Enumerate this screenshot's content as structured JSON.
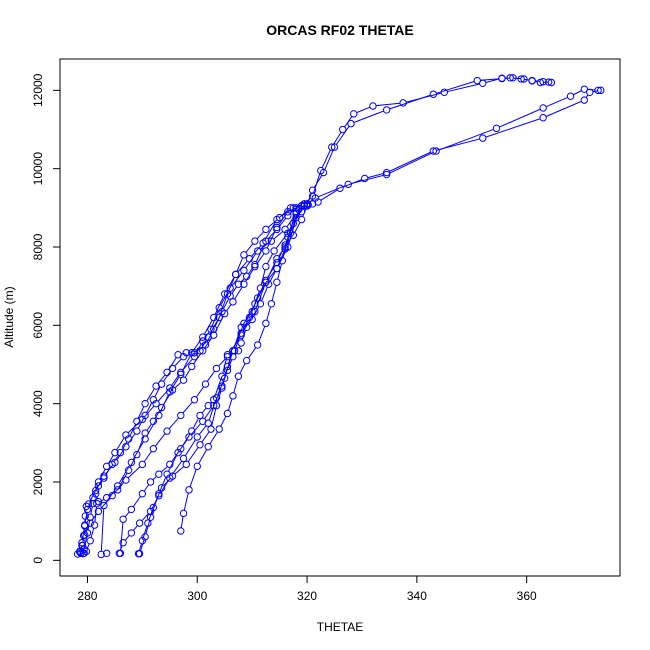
{
  "chart_data": {
    "type": "line",
    "title": "ORCAS RF02 THETAE",
    "xlabel": "THETAE",
    "ylabel": "Altitude (m)",
    "xlim": [
      275,
      377
    ],
    "ylim": [
      -400,
      12800
    ],
    "x_ticks": [
      280,
      300,
      320,
      340,
      360
    ],
    "y_ticks": [
      0,
      2000,
      4000,
      6000,
      8000,
      10000,
      12000
    ],
    "grid": false,
    "legend": "none",
    "marker": "open-circle",
    "color": "#0000ff",
    "series": [
      {
        "points": [
          [
            278.2,
            160
          ],
          [
            278.6,
            230
          ],
          [
            279.1,
            380
          ],
          [
            279.3,
            630
          ],
          [
            279.5,
            880
          ],
          [
            279.6,
            1130
          ],
          [
            279.8,
            1380
          ],
          [
            280.2,
            1440
          ],
          [
            281.5,
            1780
          ],
          [
            283.0,
            2150
          ],
          [
            285.0,
            2500
          ],
          [
            287.0,
            2900
          ],
          [
            289.0,
            3300
          ],
          [
            290.5,
            3700
          ],
          [
            292.0,
            4100
          ],
          [
            293.5,
            4500
          ],
          [
            295.5,
            4900
          ],
          [
            297.5,
            5200
          ],
          [
            299.5,
            5300
          ],
          [
            301.5,
            5500
          ],
          [
            303.0,
            5900
          ],
          [
            304.5,
            6350
          ],
          [
            306.0,
            6750
          ],
          [
            307.5,
            7050
          ],
          [
            309.0,
            7250
          ],
          [
            310.5,
            7550
          ],
          [
            312.5,
            8150
          ],
          [
            314.5,
            8450
          ],
          [
            316.5,
            8800
          ],
          [
            318.0,
            9000
          ],
          [
            319.0,
            9050
          ],
          [
            320.2,
            9080
          ],
          [
            321.0,
            9100
          ],
          [
            322.0,
            9150
          ],
          [
            326.0,
            9500
          ],
          [
            330.5,
            9750
          ],
          [
            334.5,
            9900
          ],
          [
            343.0,
            10450
          ],
          [
            352.0,
            10780
          ],
          [
            363.0,
            11300
          ],
          [
            370.5,
            11750
          ],
          [
            371.5,
            11950
          ],
          [
            373.5,
            12000
          ]
        ]
      },
      {
        "points": [
          [
            373.0,
            12000
          ],
          [
            370.5,
            12030
          ],
          [
            368.0,
            11850
          ],
          [
            363.0,
            11550
          ],
          [
            354.5,
            11030
          ],
          [
            343.5,
            10450
          ],
          [
            334.5,
            9850
          ],
          [
            327.5,
            9600
          ],
          [
            321.5,
            9250
          ],
          [
            320.0,
            9100
          ],
          [
            318.5,
            8950
          ],
          [
            316.5,
            8000
          ],
          [
            314.5,
            7450
          ],
          [
            312.5,
            7100
          ],
          [
            310.5,
            6350
          ],
          [
            308.0,
            5750
          ],
          [
            305.5,
            5200
          ],
          [
            303.5,
            4900
          ],
          [
            301.5,
            4500
          ],
          [
            299.5,
            4100
          ],
          [
            297.0,
            3700
          ],
          [
            294.5,
            3300
          ],
          [
            292.0,
            2850
          ],
          [
            290.0,
            2450
          ],
          [
            287.0,
            2050
          ],
          [
            284.5,
            1650
          ],
          [
            282.0,
            1250
          ],
          [
            280.5,
            950
          ],
          [
            279.5,
            650
          ],
          [
            279.0,
            380
          ],
          [
            278.6,
            210
          ],
          [
            279.4,
            180
          ]
        ]
      },
      {
        "points": [
          [
            279.2,
            170
          ],
          [
            279.8,
            230
          ],
          [
            280.5,
            500
          ],
          [
            281.3,
            900
          ],
          [
            281.7,
            1450
          ],
          [
            283.5,
            1600
          ],
          [
            285.5,
            1800
          ],
          [
            287.5,
            2300
          ],
          [
            289.0,
            2700
          ],
          [
            290.5,
            3250
          ],
          [
            292.0,
            3550
          ],
          [
            293.5,
            3900
          ],
          [
            295.5,
            4350
          ],
          [
            297.5,
            4600
          ],
          [
            299.0,
            4950
          ],
          [
            301.0,
            5350
          ],
          [
            303.0,
            5750
          ],
          [
            305.0,
            6300
          ],
          [
            306.5,
            6600
          ],
          [
            308.5,
            7050
          ],
          [
            310.5,
            7500
          ],
          [
            312.5,
            7900
          ],
          [
            314.5,
            8500
          ],
          [
            316.5,
            8900
          ],
          [
            319.5,
            9100
          ],
          [
            321.0,
            9300
          ],
          [
            322.5,
            9950
          ],
          [
            324.5,
            10550
          ],
          [
            326.5,
            11000
          ],
          [
            328.5,
            11400
          ],
          [
            332.0,
            11600
          ],
          [
            337.5,
            11680
          ],
          [
            345.0,
            11950
          ],
          [
            352.0,
            12180
          ],
          [
            355.5,
            12310
          ],
          [
            357.0,
            12320
          ],
          [
            359.0,
            12290
          ],
          [
            361.0,
            12250
          ],
          [
            363.0,
            12220
          ],
          [
            364.5,
            12200
          ]
        ]
      },
      {
        "points": [
          [
            364.0,
            12210
          ],
          [
            362.5,
            12200
          ],
          [
            361.0,
            12240
          ],
          [
            359.5,
            12290
          ],
          [
            357.5,
            12320
          ],
          [
            355.5,
            12300
          ],
          [
            351.0,
            12250
          ],
          [
            343.0,
            11900
          ],
          [
            334.5,
            11500
          ],
          [
            328.0,
            11150
          ],
          [
            325.0,
            10550
          ],
          [
            323.0,
            9900
          ],
          [
            321.0,
            9450
          ],
          [
            320.0,
            9050
          ],
          [
            319.0,
            8700
          ],
          [
            317.5,
            8300
          ],
          [
            316.0,
            8000
          ],
          [
            314.5,
            7700
          ],
          [
            312.5,
            7100
          ],
          [
            310.5,
            6550
          ],
          [
            308.5,
            6050
          ],
          [
            306.5,
            5350
          ],
          [
            305.5,
            4950
          ],
          [
            304.5,
            4400
          ],
          [
            303.5,
            3950
          ],
          [
            302.5,
            3350
          ],
          [
            300.5,
            2950
          ],
          [
            298.0,
            2450
          ],
          [
            295.5,
            2150
          ],
          [
            293.5,
            1850
          ],
          [
            292.0,
            1350
          ],
          [
            291.0,
            950
          ],
          [
            290.0,
            500
          ],
          [
            289.3,
            170
          ]
        ]
      },
      {
        "points": [
          [
            289.5,
            170
          ],
          [
            290.5,
            600
          ],
          [
            291.5,
            1100
          ],
          [
            293.0,
            1700
          ],
          [
            294.5,
            2200
          ],
          [
            296.5,
            2750
          ],
          [
            298.5,
            3150
          ],
          [
            301.0,
            3550
          ],
          [
            303.0,
            3950
          ],
          [
            304.5,
            4450
          ],
          [
            305.5,
            4850
          ],
          [
            306.5,
            5200
          ],
          [
            307.5,
            5350
          ],
          [
            308.0,
            5550
          ],
          [
            309.0,
            5950
          ],
          [
            310.0,
            6150
          ],
          [
            311.5,
            6550
          ],
          [
            313.0,
            7050
          ],
          [
            314.5,
            7450
          ],
          [
            316.0,
            7950
          ],
          [
            317.0,
            8350
          ],
          [
            318.0,
            8750
          ],
          [
            319.5,
            9050
          ]
        ]
      },
      {
        "points": [
          [
            319.0,
            9050
          ],
          [
            316.5,
            8350
          ],
          [
            314.0,
            7900
          ],
          [
            312.5,
            7500
          ],
          [
            311.5,
            6950
          ],
          [
            310.0,
            6350
          ],
          [
            308.0,
            5950
          ],
          [
            306.5,
            5350
          ],
          [
            305.0,
            4650
          ],
          [
            303.5,
            4150
          ],
          [
            302.0,
            3500
          ],
          [
            300.0,
            3150
          ],
          [
            297.5,
            2600
          ],
          [
            295.0,
            2100
          ],
          [
            293.0,
            1650
          ],
          [
            291.5,
            1250
          ],
          [
            289.5,
            950
          ],
          [
            288.0,
            700
          ],
          [
            286.5,
            450
          ],
          [
            285.8,
            180
          ]
        ]
      },
      {
        "points": [
          [
            286.0,
            180
          ],
          [
            286.5,
            1050
          ],
          [
            288.0,
            1300
          ],
          [
            290.0,
            1700
          ],
          [
            291.5,
            2000
          ],
          [
            293.0,
            2200
          ],
          [
            295.0,
            2450
          ],
          [
            297.0,
            2850
          ],
          [
            299.0,
            3300
          ],
          [
            300.5,
            3700
          ],
          [
            302.0,
            3950
          ],
          [
            303.0,
            4100
          ],
          [
            304.5,
            4700
          ],
          [
            305.5,
            5250
          ],
          [
            306.8,
            5350
          ],
          [
            308.0,
            5800
          ],
          [
            309.5,
            6200
          ],
          [
            311.0,
            6700
          ],
          [
            312.5,
            7150
          ],
          [
            314.5,
            7600
          ],
          [
            316.0,
            8050
          ],
          [
            317.5,
            8600
          ],
          [
            319.0,
            8900
          ],
          [
            320.0,
            9050
          ]
        ]
      },
      {
        "points": [
          [
            320.0,
            9050
          ],
          [
            318.0,
            8850
          ],
          [
            316.0,
            8450
          ],
          [
            313.5,
            8150
          ],
          [
            311.0,
            7900
          ],
          [
            308.5,
            7400
          ],
          [
            306.0,
            6950
          ],
          [
            304.0,
            6450
          ],
          [
            302.5,
            5900
          ],
          [
            301.0,
            5600
          ],
          [
            299.5,
            5200
          ],
          [
            297.0,
            4800
          ],
          [
            295.0,
            4400
          ],
          [
            292.5,
            4000
          ],
          [
            290.0,
            3600
          ],
          [
            287.0,
            3200
          ],
          [
            285.0,
            2750
          ],
          [
            283.5,
            2400
          ],
          [
            282.0,
            2000
          ],
          [
            281.0,
            1600
          ],
          [
            280.0,
            1300
          ],
          [
            279.5,
            900
          ],
          [
            279.0,
            450
          ],
          [
            278.8,
            180
          ]
        ]
      },
      {
        "points": [
          [
            278.8,
            180
          ],
          [
            279.4,
            280
          ],
          [
            280.0,
            700
          ],
          [
            280.5,
            1100
          ],
          [
            281.0,
            1450
          ],
          [
            282.0,
            1500
          ],
          [
            281.5,
            1700
          ],
          [
            282.0,
            1900
          ],
          [
            283.0,
            2100
          ],
          [
            284.5,
            2450
          ],
          [
            286.0,
            2750
          ],
          [
            287.5,
            3100
          ],
          [
            289.0,
            3550
          ],
          [
            290.5,
            4000
          ],
          [
            292.5,
            4450
          ],
          [
            294.5,
            4800
          ],
          [
            296.5,
            5250
          ],
          [
            298.0,
            5300
          ],
          [
            300.5,
            5350
          ],
          [
            302.0,
            5700
          ],
          [
            304.0,
            6200
          ],
          [
            305.5,
            6800
          ],
          [
            307.0,
            7300
          ],
          [
            308.5,
            7800
          ],
          [
            310.5,
            8150
          ],
          [
            312.5,
            8450
          ],
          [
            315.0,
            8750
          ],
          [
            317.5,
            9000
          ],
          [
            319.5,
            9100
          ]
        ]
      },
      {
        "points": [
          [
            319.5,
            9100
          ],
          [
            317.0,
            9000
          ],
          [
            314.5,
            8700
          ],
          [
            312.0,
            8100
          ],
          [
            309.5,
            7700
          ],
          [
            307.0,
            7300
          ],
          [
            305.0,
            6800
          ],
          [
            303.0,
            6200
          ],
          [
            301.0,
            5700
          ],
          [
            299.0,
            5300
          ],
          [
            297.0,
            4750
          ],
          [
            295.0,
            4300
          ],
          [
            293.0,
            3700
          ],
          [
            290.5,
            3100
          ],
          [
            288.0,
            2500
          ],
          [
            285.5,
            1900
          ],
          [
            283.0,
            1400
          ],
          [
            282.5,
            150
          ],
          [
            283.5,
            180
          ]
        ]
      },
      {
        "points": [
          [
            297.0,
            750
          ],
          [
            297.5,
            1200
          ],
          [
            298.5,
            1800
          ],
          [
            300.0,
            2400
          ],
          [
            302.0,
            2900
          ],
          [
            304.0,
            3350
          ],
          [
            305.5,
            3750
          ],
          [
            306.5,
            4200
          ],
          [
            307.5,
            4700
          ],
          [
            309.0,
            5100
          ],
          [
            311.0,
            5500
          ],
          [
            312.5,
            6050
          ],
          [
            313.5,
            6550
          ],
          [
            314.5,
            7100
          ],
          [
            315.5,
            7650
          ],
          [
            316.5,
            8250
          ],
          [
            318.0,
            8900
          ],
          [
            320.0,
            9100
          ]
        ]
      }
    ]
  }
}
